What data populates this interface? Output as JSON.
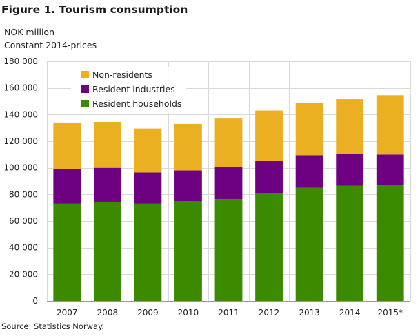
{
  "title": "Figure 1. Tourism consumption",
  "subtitle_unit": "NOK million",
  "subtitle_prices": "Constant 2014-prices",
  "source": "Source: Statistics Norway.",
  "colors": {
    "resident_households": "#3b8a00",
    "resident_industries": "#6e0082",
    "non_residents": "#ebb022",
    "grid": "#d9d9d9",
    "plot_bg": "#ffffff"
  },
  "chart_data": {
    "type": "bar",
    "stacked": true,
    "title": "Figure 1. Tourism consumption",
    "ylabel": "NOK million",
    "xlabel": "",
    "ylim": [
      0,
      180000
    ],
    "yticks": [
      0,
      20000,
      40000,
      60000,
      80000,
      100000,
      120000,
      140000,
      160000,
      180000
    ],
    "ytick_labels": [
      "0",
      "20 000",
      "40 000",
      "60 000",
      "80 000",
      "100 000",
      "120 000",
      "140 000",
      "160 000",
      "180 000"
    ],
    "categories": [
      "2007",
      "2008",
      "2009",
      "2010",
      "2011",
      "2012",
      "2013",
      "2014",
      "2015*"
    ],
    "series": [
      {
        "name": "Resident households",
        "color_key": "resident_households",
        "values": [
          73000,
          74500,
          73000,
          75000,
          76500,
          81000,
          85000,
          86500,
          87000
        ]
      },
      {
        "name": "Resident industries",
        "color_key": "resident_industries",
        "values": [
          26000,
          25500,
          23500,
          23000,
          24000,
          24000,
          24500,
          24000,
          23000
        ]
      },
      {
        "name": "Non-residents",
        "color_key": "non_residents",
        "values": [
          35000,
          34500,
          33000,
          35000,
          36500,
          38000,
          39000,
          41000,
          44500
        ]
      }
    ],
    "legend": [
      "Non-residents",
      "Resident industries",
      "Resident households"
    ],
    "legend_position": "top-left",
    "grid": true
  }
}
